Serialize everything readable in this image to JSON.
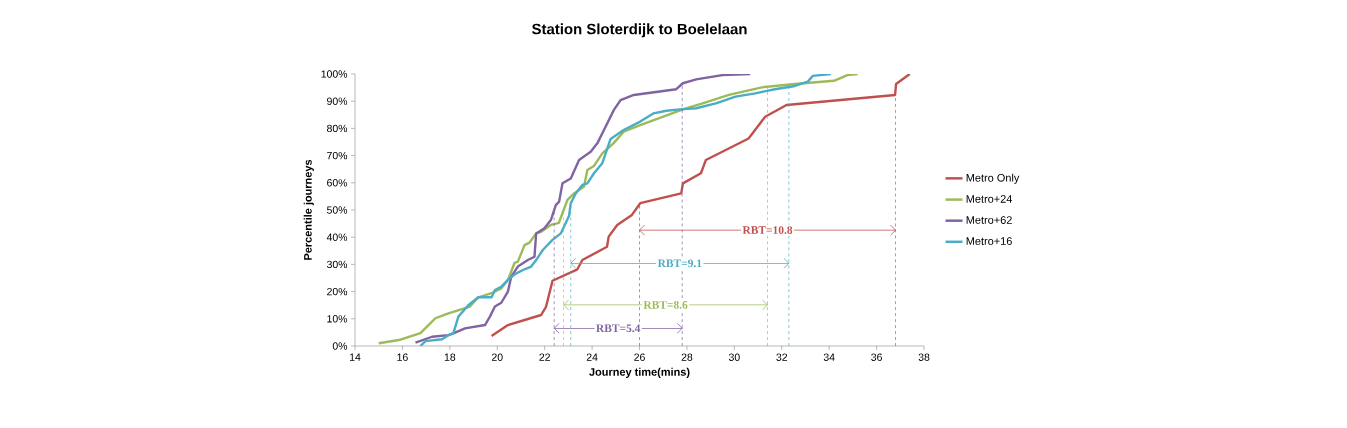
{
  "chart_data": {
    "type": "line",
    "title": "Station Sloterdijk to Boelelaan",
    "xlabel": "Journey time(mins)",
    "ylabel": "Percentile journeys",
    "xlim": [
      14,
      38
    ],
    "xticks": [
      14,
      16,
      18,
      20,
      22,
      24,
      26,
      28,
      30,
      32,
      34,
      36,
      38
    ],
    "ylim": [
      0,
      100
    ],
    "yticks": [
      {
        "value": 0,
        "label": "0%"
      },
      {
        "value": 10,
        "label": "10%"
      },
      {
        "value": 20,
        "label": "20%"
      },
      {
        "value": 30,
        "label": "30%"
      },
      {
        "value": 40,
        "label": "40%"
      },
      {
        "value": 50,
        "label": "50%"
      },
      {
        "value": 60,
        "label": "60%"
      },
      {
        "value": 70,
        "label": "70%"
      },
      {
        "value": 80,
        "label": "80%"
      },
      {
        "value": 90,
        "label": "90%"
      },
      {
        "value": 100,
        "label": "100%"
      }
    ],
    "legend": "right",
    "marker": "none",
    "line_style": "solid",
    "grid": false,
    "series": [
      {
        "name": "Metro Only",
        "color": "#c0504d",
        "x": [
          19.76,
          20.45,
          21.85,
          22.06,
          22.33,
          23.38,
          23.59,
          24.63,
          24.7,
          25.06,
          25.68,
          26.03,
          27.76,
          27.83,
          28.59,
          28.8,
          30.6,
          31.3,
          32.2,
          36.78,
          36.82,
          37.4
        ],
        "values": [
          3.7,
          7.7,
          11.4,
          14.5,
          24,
          28.2,
          31.6,
          36.5,
          40.2,
          44.5,
          48.2,
          52.5,
          56.1,
          59.8,
          63.5,
          68.4,
          76.3,
          84.3,
          88.6,
          92.3,
          96.3,
          100
        ]
      },
      {
        "name": "Metro+24",
        "color": "#9bbb59",
        "x": [
          15.0,
          15.85,
          16.76,
          17.39,
          17.94,
          18.85,
          19.2,
          19.76,
          20.17,
          20.45,
          20.73,
          20.87,
          21.15,
          21.36,
          21.64,
          21.85,
          22.26,
          22.6,
          22.75,
          22.96,
          23.24,
          23.66,
          23.8,
          24.08,
          24.43,
          24.9,
          25.33,
          26.03,
          27.0,
          27.83,
          28.66,
          29.77,
          31.16,
          32.55,
          34.2,
          34.77,
          35.2
        ],
        "values": [
          1,
          2.2,
          4.7,
          10.2,
          12,
          14.5,
          17.9,
          19.4,
          21.2,
          24.3,
          30.6,
          31,
          37.1,
          38,
          41.4,
          42,
          44.5,
          45.3,
          48.8,
          53.7,
          56.1,
          58.6,
          64.7,
          66.2,
          70.8,
          74.5,
          78.8,
          81.2,
          84.3,
          87,
          89.2,
          92.3,
          95.1,
          96.3,
          97.5,
          99.6,
          100
        ]
      },
      {
        "name": "Metro+62",
        "color": "#8064a2",
        "x": [
          16.55,
          17.25,
          17.94,
          18.22,
          18.64,
          19.48,
          19.69,
          19.9,
          20.17,
          20.45,
          20.59,
          20.87,
          21.29,
          21.57,
          21.64,
          21.99,
          22.26,
          22.47,
          22.61,
          22.75,
          23.1,
          23.45,
          23.94,
          24.22,
          24.5,
          24.92,
          25.2,
          25.76,
          27.55,
          27.83,
          28.39,
          29.5,
          30.67
        ],
        "values": [
          1.2,
          3.4,
          4,
          4.9,
          6.5,
          7.7,
          10.8,
          14.5,
          15.9,
          20,
          25.5,
          29.2,
          31.6,
          32.8,
          41.4,
          43.3,
          46.3,
          51.8,
          53.1,
          59.8,
          61.6,
          68.4,
          71.4,
          74.5,
          79.4,
          86.8,
          90.4,
          92.3,
          94.4,
          96.6,
          98,
          99.6,
          100
        ]
      },
      {
        "name": "Metro+16",
        "color": "#4bacc6",
        "x": [
          16.76,
          16.97,
          17.67,
          17.94,
          18.15,
          18.36,
          18.78,
          19.2,
          19.76,
          19.9,
          20.17,
          20.45,
          20.8,
          21.15,
          21.43,
          21.64,
          21.92,
          22.33,
          22.68,
          23.03,
          23.1,
          23.31,
          23.59,
          23.8,
          24.08,
          24.43,
          24.78,
          25.33,
          26.03,
          26.58,
          27.14,
          27.69,
          28.39,
          29.22,
          30.05,
          30.88,
          31.71,
          32.55,
          33.1,
          33.31,
          34.07
        ],
        "values": [
          0,
          1.8,
          2.5,
          4,
          4.7,
          10.8,
          15,
          17.9,
          17.9,
          20.6,
          21.8,
          24.3,
          26.7,
          28.2,
          29.2,
          31.6,
          35.3,
          39,
          41.4,
          47.9,
          52.5,
          56.1,
          59.2,
          59.8,
          63.5,
          67.2,
          76.1,
          79.4,
          82.5,
          85.5,
          86.5,
          87,
          87.4,
          89.2,
          91.7,
          92.9,
          94.4,
          95.6,
          97.2,
          99.3,
          100
        ]
      }
    ],
    "ref_lines": [
      {
        "axis": "x",
        "value": 26.0,
        "color": "#c0504d",
        "line_style": "dashed"
      },
      {
        "axis": "x",
        "value": 36.8,
        "color": "#c0504d",
        "line_style": "dashed"
      },
      {
        "axis": "x",
        "value": 23.1,
        "color": "#4bacc6",
        "line_style": "dashed"
      },
      {
        "axis": "x",
        "value": 32.3,
        "color": "#4bacc6",
        "line_style": "dashed"
      },
      {
        "axis": "x",
        "value": 22.8,
        "color": "#9bbb59",
        "line_style": "dashed"
      },
      {
        "axis": "x",
        "value": 31.4,
        "color": "#9bbb59",
        "line_style": "dashed"
      },
      {
        "axis": "x",
        "value": 22.4,
        "color": "#8064a2",
        "line_style": "dashed"
      },
      {
        "axis": "x",
        "value": 27.8,
        "color": "#8064a2",
        "line_style": "dashed"
      }
    ],
    "annotations": [
      "RBT=10.8",
      "RBT=9.1",
      "RBT=8.6",
      "RBT=5.4"
    ]
  }
}
